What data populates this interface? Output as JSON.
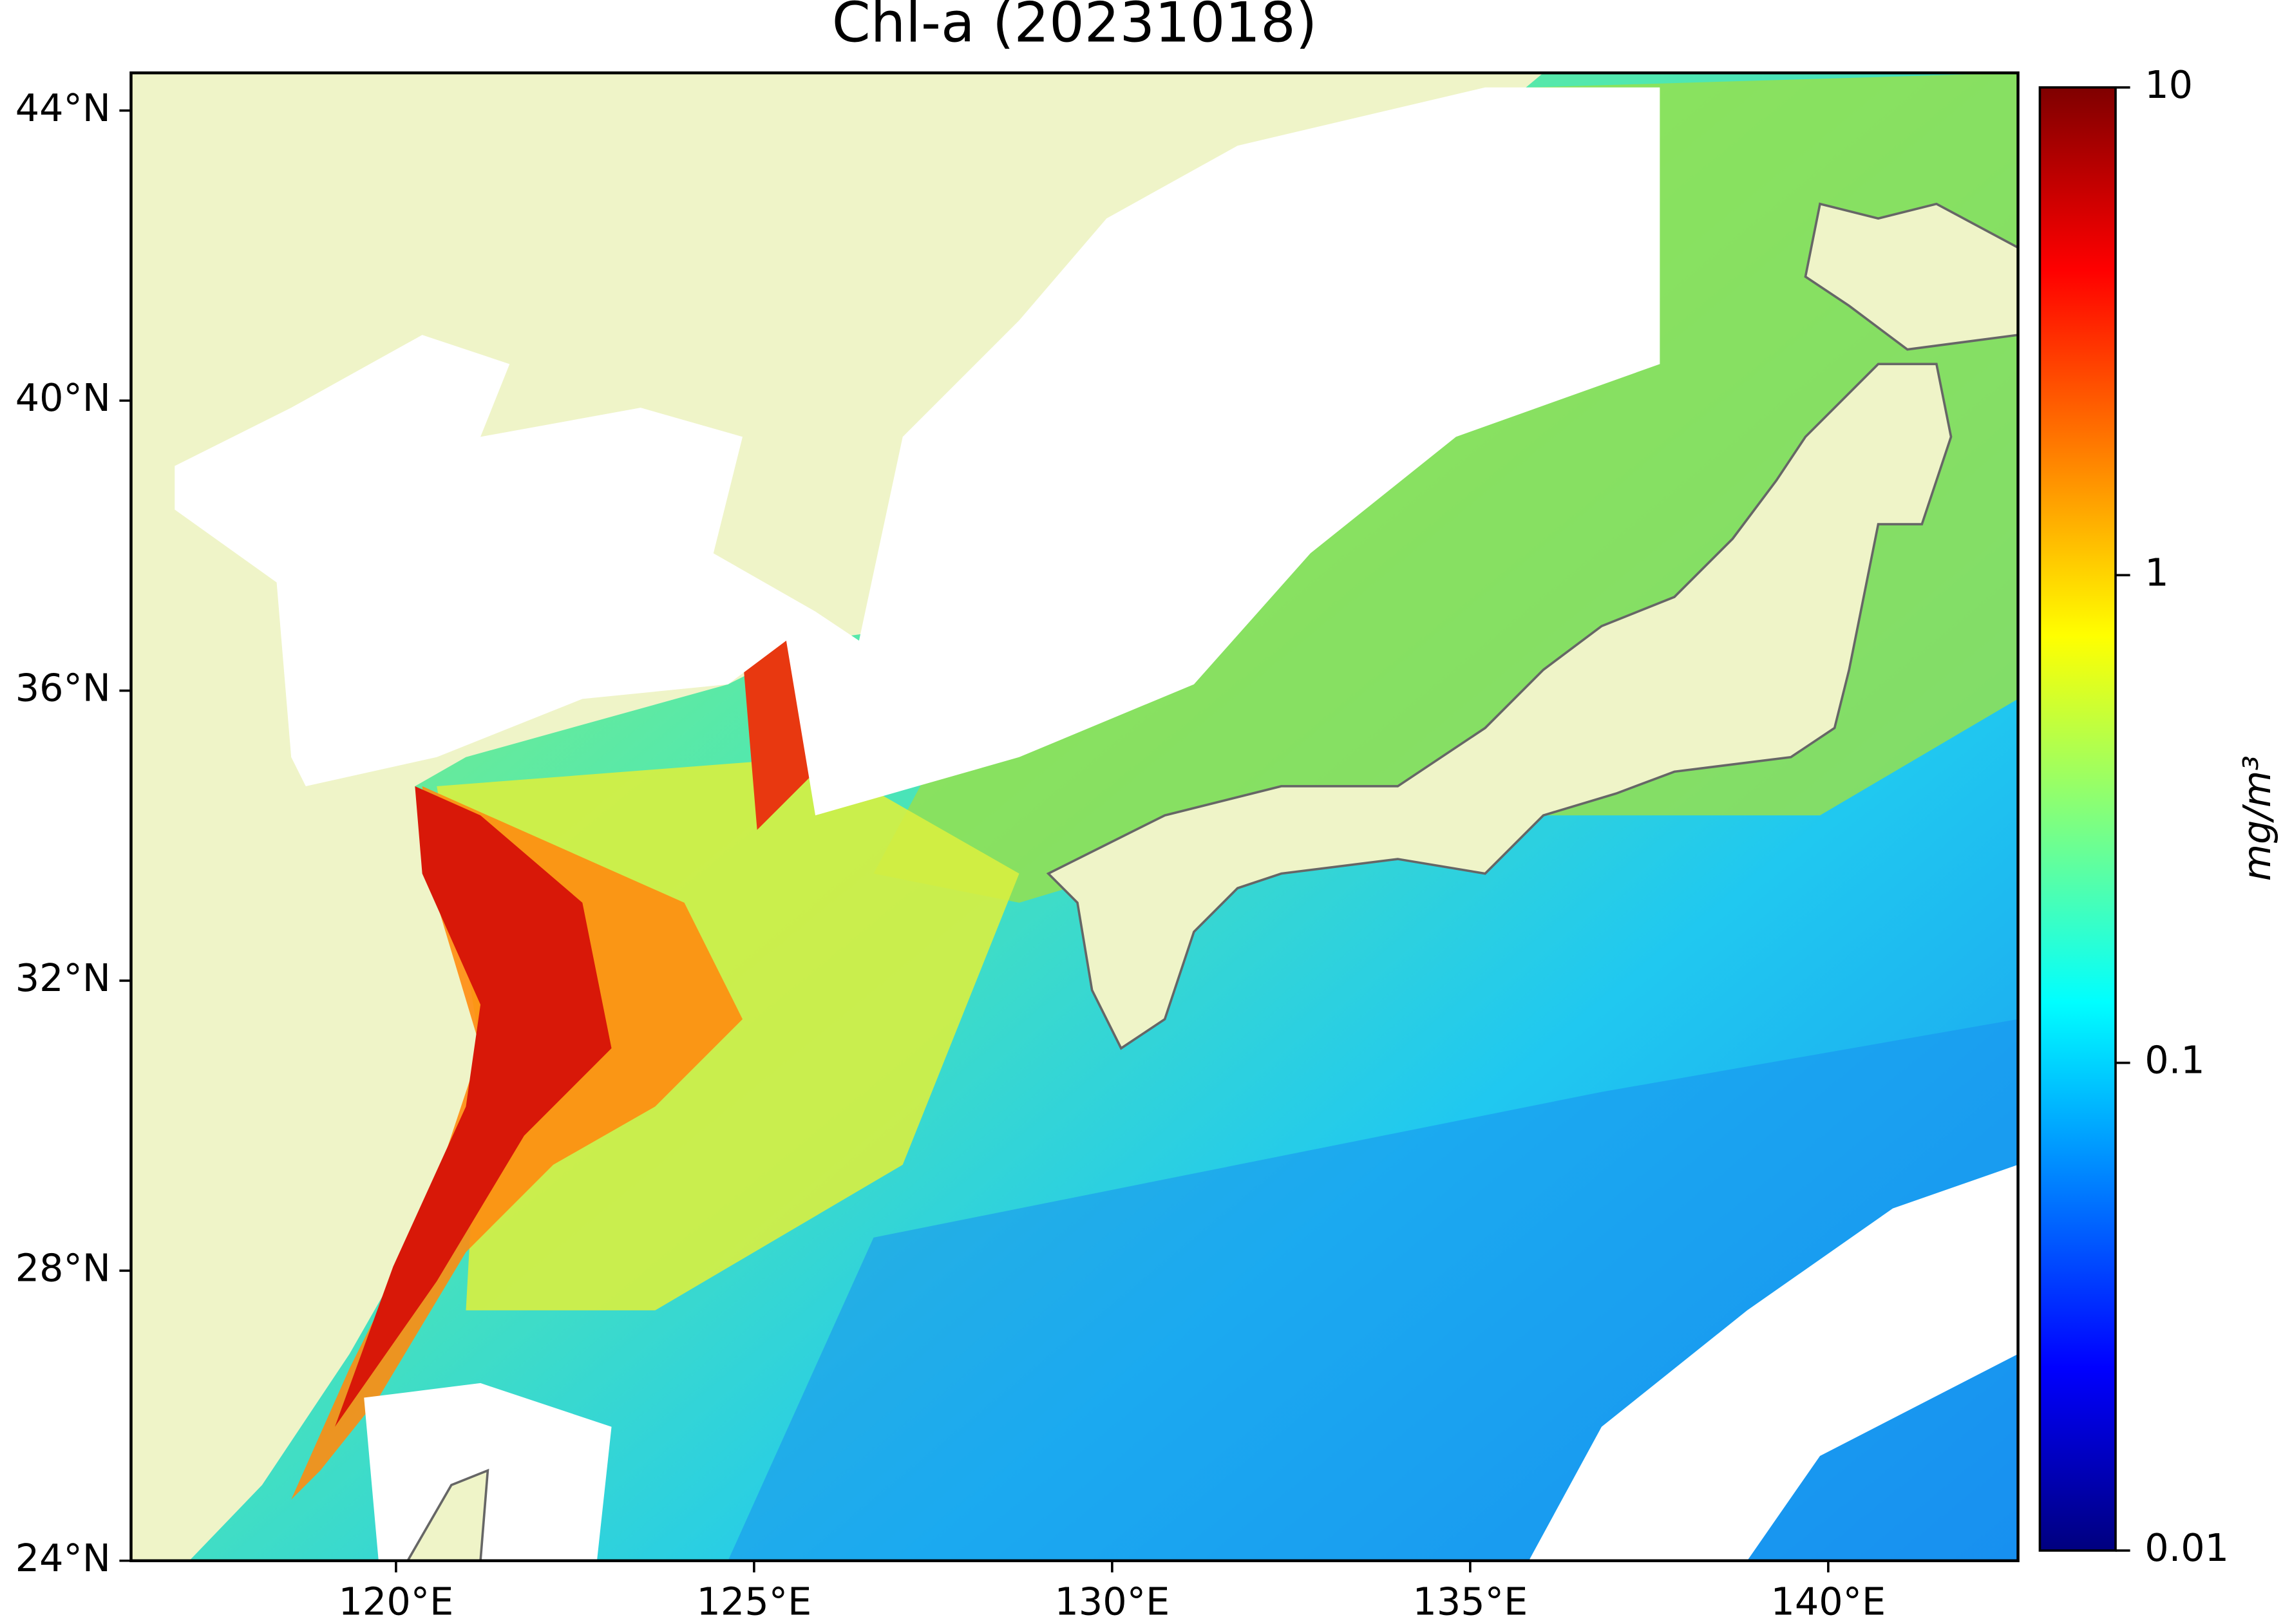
{
  "chart_data": {
    "type": "map",
    "title": "Chl-a (20231018)",
    "xlim": [
      116.3,
      142.65
    ],
    "ylim": [
      24,
      44.52
    ],
    "xticks": [
      {
        "value": 120,
        "label": "120°E"
      },
      {
        "value": 125,
        "label": "125°E"
      },
      {
        "value": 130,
        "label": "130°E"
      },
      {
        "value": 135,
        "label": "135°E"
      },
      {
        "value": 140,
        "label": "140°E"
      }
    ],
    "yticks": [
      {
        "value": 24,
        "label": "24°N"
      },
      {
        "value": 28,
        "label": "28°N"
      },
      {
        "value": 32,
        "label": "32°N"
      },
      {
        "value": 36,
        "label": "36°N"
      },
      {
        "value": 40,
        "label": "40°N"
      },
      {
        "value": 44,
        "label": "44°N"
      }
    ],
    "colorbar": {
      "label": "mg/m³",
      "colormap": "jet",
      "log": true,
      "clim": [
        0.01,
        10
      ],
      "ticks": [
        0.01,
        0.1,
        1,
        10
      ]
    }
  }
}
